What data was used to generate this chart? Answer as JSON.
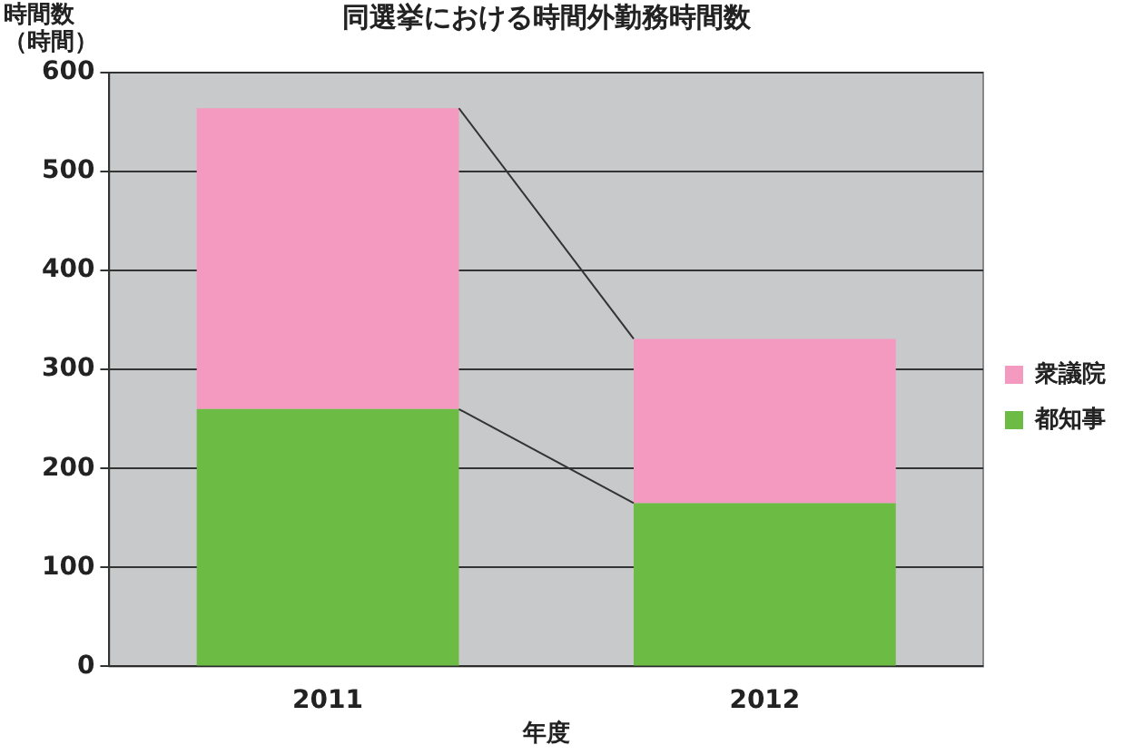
{
  "chart_data": {
    "type": "bar",
    "title": "同選挙における時間外勤務時間数",
    "ylabel": "時間数（時間）",
    "xlabel": "年度",
    "categories": [
      "2011",
      "2012"
    ],
    "stacked": true,
    "series": [
      {
        "name": "都知事",
        "color": "#6bbb45",
        "values": [
          260,
          165
        ]
      },
      {
        "name": "衆議院",
        "color": "#f49ac1",
        "values": [
          304,
          166
        ]
      }
    ],
    "ylim": [
      0,
      600
    ],
    "yticks": [
      0,
      100,
      200,
      300,
      400,
      500,
      600
    ],
    "grid": "y",
    "legend": "right"
  }
}
